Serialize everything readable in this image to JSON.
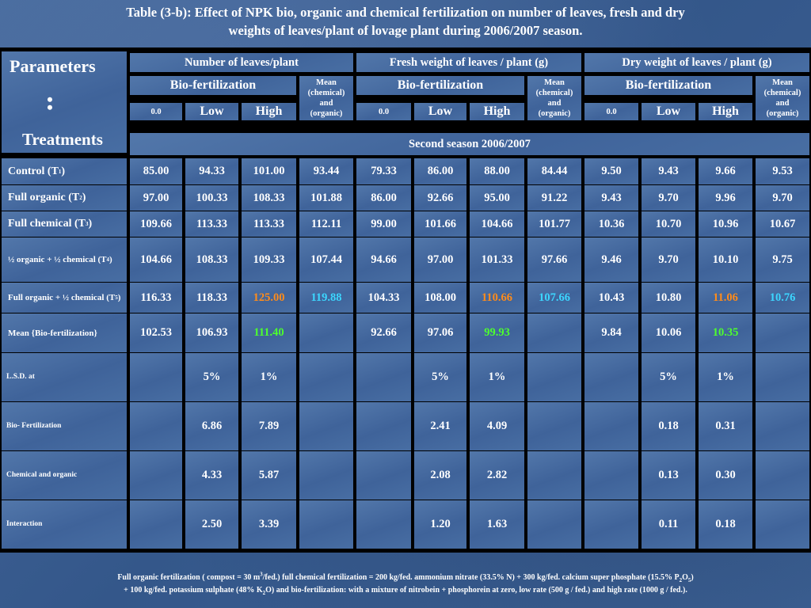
{
  "title": {
    "line1": "Table (3-b): Effect of NPK bio, organic and chemical fertilization  on  number of leaves, fresh and dry",
    "line2": "weights of leaves/plant of lovage plant during 2006/2007 season."
  },
  "header": {
    "parameters": "Parameters",
    "dots": "• •",
    "treatments": "Treatments",
    "groups": [
      "Number of leaves/plant",
      "Fresh weight of leaves / plant (g)",
      "Dry weight of leaves / plant (g)"
    ],
    "bio": "Bio-fertilization",
    "mean_chem_org": "Mean (chemical) and (organic)",
    "levels": [
      "0.0",
      "Low",
      "High"
    ],
    "season": "Second season 2006/2007"
  },
  "rows": [
    {
      "label": "Control  (T",
      "sub": "1",
      "suffix": ")",
      "values": [
        "85.00",
        "94.33",
        "101.00",
        "93.44",
        "79.33",
        "86.00",
        "88.00",
        "84.44",
        "9.50",
        "9.43",
        "9.66",
        "9.53"
      ]
    },
    {
      "label": "Full organic (T",
      "sub": "2",
      "suffix": ")",
      "values": [
        "97.00",
        "100.33",
        "108.33",
        "101.88",
        "86.00",
        "92.66",
        "95.00",
        "91.22",
        "9.43",
        "9.70",
        "9.96",
        "9.70"
      ]
    },
    {
      "label": "Full chemical (T",
      "sub": "3",
      "suffix": ")",
      "values": [
        "109.66",
        "113.33",
        "113.33",
        "112.11",
        "99.00",
        "101.66",
        "104.66",
        "101.77",
        "10.36",
        "10.70",
        "10.96",
        "10.67"
      ]
    },
    {
      "label": "½ organic + ½ chemical (T",
      "sub": "4",
      "suffix": ")",
      "values": [
        "104.66",
        "108.33",
        "109.33",
        "107.44",
        "94.66",
        "97.00",
        "101.33",
        "97.66",
        "9.46",
        "9.70",
        "10.10",
        "9.75"
      ]
    },
    {
      "label": "Full organic + ½ chemical (T",
      "sub": "5",
      "suffix": ")",
      "values": [
        "116.33",
        "118.33",
        "125.00",
        "119.88",
        "104.33",
        "108.00",
        "110.66",
        "107.66",
        "10.43",
        "10.80",
        "11.06",
        "10.76"
      ]
    },
    {
      "label": "Mean {Bio-fertilization}",
      "sub": "",
      "suffix": "",
      "values": [
        "102.53",
        "106.93",
        "111.40",
        "",
        "92.66",
        "97.06",
        "99.93",
        "",
        "9.84",
        "10.06",
        "10.35",
        ""
      ]
    }
  ],
  "lsd": {
    "label": "L.S.D.  at",
    "pct": [
      "5%",
      "1%"
    ],
    "rows": [
      {
        "label": "Bio- Fertilization",
        "values": [
          "6.86",
          "7.89",
          "2.41",
          "4.09",
          "0.18",
          "0.31"
        ]
      },
      {
        "label": "Chemical  and organic",
        "values": [
          "4.33",
          "5.87",
          "2.08",
          "2.82",
          "0.13",
          "0.30"
        ]
      },
      {
        "label": "Interaction",
        "values": [
          "2.50",
          "3.39",
          "1.20",
          "1.63",
          "0.11",
          "0.18"
        ]
      }
    ]
  },
  "highlight_colors": {
    "orange": "#ff8c1a",
    "cyan": "#3cd6ff",
    "green": "#4dff2e"
  },
  "footnote": {
    "line1_a": "Full organic fertilization ( compost = 30 m",
    "line1_sup": "3",
    "line1_b": "/fed.) full chemical fertilization = 200 kg/fed. ammonium nitrate (33.5% N) + 300 kg/fed. calcium super phosphate (15.5% P",
    "line1_sub1": "2",
    "line1_c": "O",
    "line1_sub2": "5",
    "line1_d": ")",
    "line2_a": "+ 100 kg/fed. potassium  sulphate (48% K",
    "line2_sub": "2",
    "line2_b": "O)   and bio-fertilization: with a mixture of nitrobein + phosphorein at zero, low rate (500 g / fed.) and high rate  (1000 g / fed.)."
  }
}
